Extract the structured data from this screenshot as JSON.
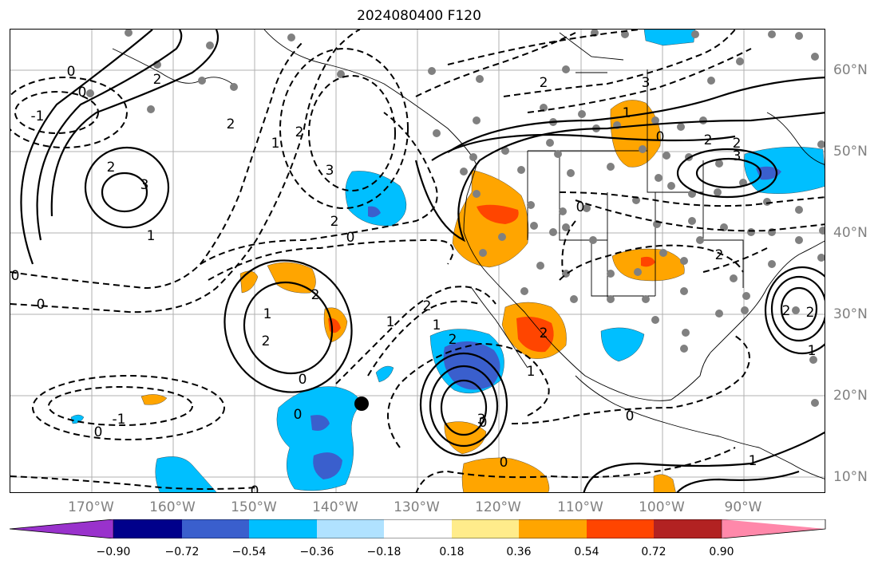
{
  "title": "2024080400 F120",
  "lat_labels": [
    "60°N",
    "50°N",
    "40°N",
    "30°N",
    "20°N",
    "10°N"
  ],
  "lon_labels": [
    "170°W",
    "160°W",
    "150°W",
    "140°W",
    "130°W",
    "120°W",
    "110°W",
    "100°W",
    "90°W"
  ],
  "contour_labels": [
    {
      "text": "0"
    },
    {
      "text": "0"
    },
    {
      "text": "-1"
    },
    {
      "text": "2"
    },
    {
      "text": "3"
    },
    {
      "text": "1"
    },
    {
      "text": "2"
    },
    {
      "text": "1"
    },
    {
      "text": "2"
    },
    {
      "text": "3"
    },
    {
      "text": "2"
    },
    {
      "text": "0"
    },
    {
      "text": "2"
    },
    {
      "text": "1"
    },
    {
      "text": "2"
    },
    {
      "text": "2"
    },
    {
      "text": "0"
    },
    {
      "text": "0"
    },
    {
      "text": "0"
    },
    {
      "text": "-1"
    },
    {
      "text": "0"
    },
    {
      "text": "0"
    },
    {
      "text": "1"
    },
    {
      "text": "2"
    },
    {
      "text": "1"
    },
    {
      "text": "2"
    },
    {
      "text": "2"
    },
    {
      "text": "0"
    },
    {
      "text": "1"
    },
    {
      "text": "3"
    },
    {
      "text": "0"
    },
    {
      "text": "2"
    },
    {
      "text": "3"
    },
    {
      "text": "2"
    },
    {
      "text": "2"
    },
    {
      "text": "0"
    },
    {
      "text": "0"
    },
    {
      "text": "1"
    },
    {
      "text": "1"
    },
    {
      "text": "2"
    },
    {
      "text": "2"
    },
    {
      "text": "1"
    },
    {
      "text": "2"
    },
    {
      "text": "3"
    },
    {
      "text": "0"
    },
    {
      "text": "0"
    }
  ],
  "colorbar": {
    "colors": [
      "#9932CC",
      "#00008B",
      "#3A5FCD",
      "#00BFFF",
      "#B0E2FF",
      "#FFFFFF",
      "#FFEC8B",
      "#FFA500",
      "#FF4500",
      "#B22222",
      "#FF88AA"
    ],
    "tick_labels": [
      "−0.90",
      "−0.72",
      "−0.54",
      "−0.36",
      "−0.18",
      "0.18",
      "0.36",
      "0.54",
      "0.72",
      "0.90"
    ]
  },
  "shading_colors": {
    "light_blue": "#00BFFF",
    "mid_blue": "#3A5FCD",
    "orange": "#FFA500",
    "red": "#FF4500"
  }
}
